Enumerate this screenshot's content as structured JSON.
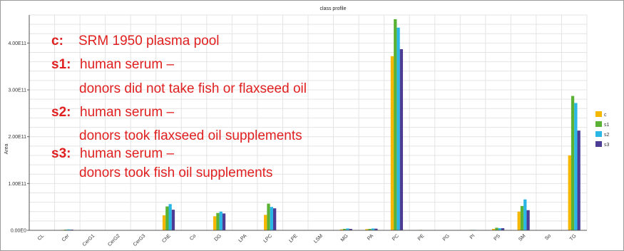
{
  "chart_data": {
    "type": "bar",
    "title": "class profile",
    "xlabel": "",
    "ylabel": "Area",
    "ylim": [
      0,
      460000000000
    ],
    "yticks": [
      {
        "value": 0,
        "label": "0.00E0"
      },
      {
        "value": 100000000000,
        "label": "1.00E11"
      },
      {
        "value": 200000000000,
        "label": "2.00E11"
      },
      {
        "value": 300000000000,
        "label": "3.00E11"
      },
      {
        "value": 400000000000,
        "label": "4.00E11"
      }
    ],
    "grid": true,
    "legend_position": "right",
    "categories": [
      "CL",
      "Cer",
      "CerG1",
      "CerG2",
      "CerG3",
      "ChE",
      "Co",
      "DG",
      "LPA",
      "LPC",
      "LPE",
      "LSM",
      "MG",
      "PA",
      "PC",
      "PE",
      "PG",
      "PI",
      "PS",
      "SM",
      "So",
      "TG"
    ],
    "series": [
      {
        "name": "c",
        "color": "#f5b700",
        "values": [
          0,
          1000000000,
          0,
          0,
          0,
          32000000000,
          0,
          30000000000,
          0,
          33000000000,
          0,
          0,
          2000000000,
          2500000000,
          372000000000,
          500000000,
          0,
          500000000,
          3000000000,
          40000000000,
          0,
          160000000000
        ]
      },
      {
        "name": "s1",
        "color": "#5ab133",
        "values": [
          0,
          1500000000,
          500000000,
          0,
          0,
          51000000000,
          0,
          37000000000,
          0,
          57000000000,
          0,
          0,
          3000000000,
          3000000000,
          451000000000,
          1000000000,
          0,
          1000000000,
          5500000000,
          52000000000,
          0,
          287000000000
        ]
      },
      {
        "name": "s2",
        "color": "#2ab7e6",
        "values": [
          0,
          2000000000,
          500000000,
          0,
          0,
          56000000000,
          0,
          40000000000,
          0,
          50000000000,
          0,
          0,
          4000000000,
          4000000000,
          433000000000,
          500000000,
          0,
          1000000000,
          4500000000,
          66000000000,
          0,
          272000000000
        ]
      },
      {
        "name": "s3",
        "color": "#4d3c95",
        "values": [
          0,
          1500000000,
          0,
          0,
          0,
          44000000000,
          0,
          36000000000,
          0,
          47000000000,
          0,
          0,
          3000000000,
          3500000000,
          387000000000,
          500000000,
          0,
          500000000,
          4500000000,
          43000000000,
          0,
          213000000000
        ]
      }
    ],
    "annotations": [
      {
        "key": "c:",
        "text": "SRM 1950 plasma pool"
      },
      {
        "key": "s1:",
        "text": "human serum –"
      },
      {
        "key": "",
        "text": "donors did not take fish or flaxseed oil"
      },
      {
        "key": "s2:",
        "text": "human serum –"
      },
      {
        "key": "",
        "text": "donors took flaxseed oil supplements"
      },
      {
        "key": "s3:",
        "text": "human serum –"
      },
      {
        "key": "",
        "text": "donors took fish oil supplements"
      }
    ]
  }
}
